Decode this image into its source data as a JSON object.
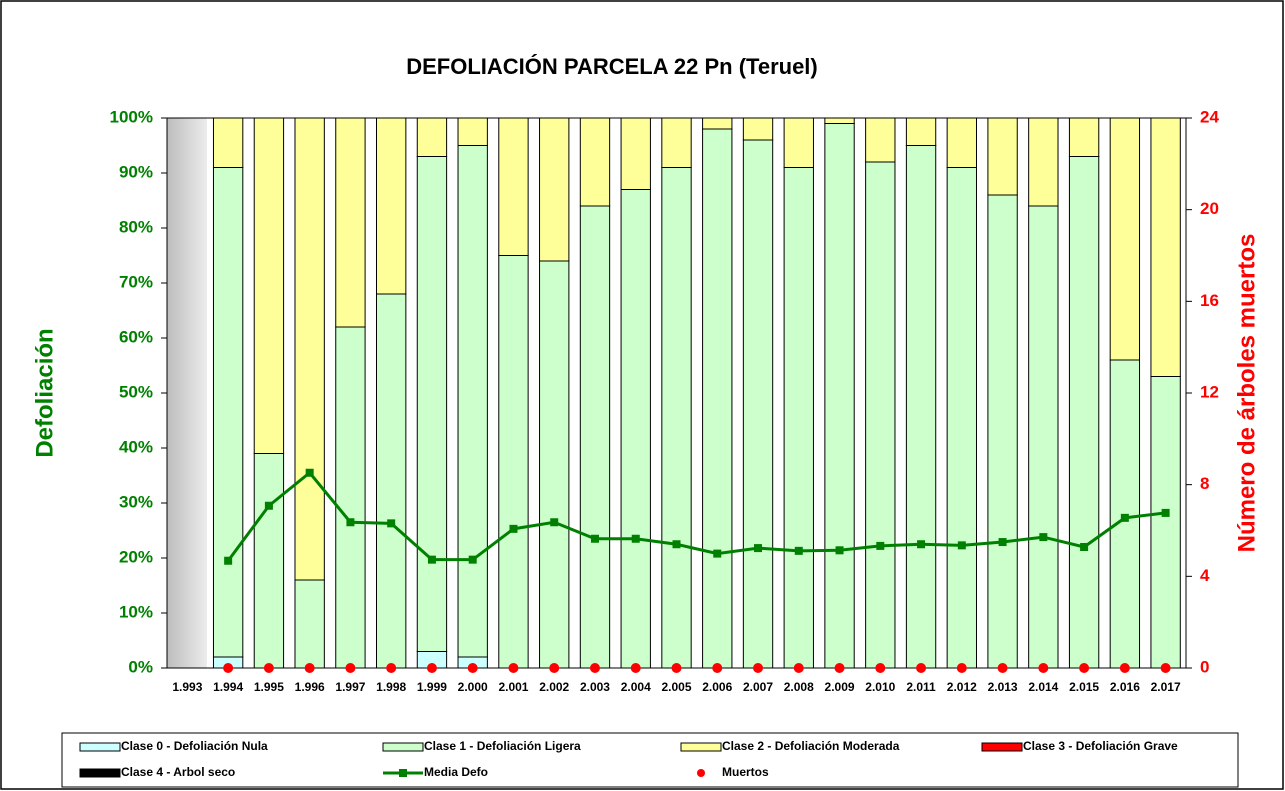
{
  "chart_data": {
    "type": "bar",
    "stacked": true,
    "title": "DEFOLIACIÓN PARCELA 22 Pn (Teruel)",
    "y_label": "Defoliación",
    "y2_label": "Número de árboles muertos",
    "categories": [
      "1.993",
      "1.994",
      "1.995",
      "1.996",
      "1.997",
      "1.998",
      "1.999",
      "2.000",
      "2.001",
      "2.002",
      "2.003",
      "2.004",
      "2.005",
      "2.006",
      "2.007",
      "2.008",
      "2.009",
      "2.010",
      "2.011",
      "2.012",
      "2.013",
      "2.014",
      "2.015",
      "2.016",
      "2.017"
    ],
    "ylim": [
      0,
      100
    ],
    "yticks": [
      {
        "value": 0,
        "label": "0%"
      },
      {
        "value": 10,
        "label": "10%"
      },
      {
        "value": 20,
        "label": "20%"
      },
      {
        "value": 30,
        "label": "30%"
      },
      {
        "value": 40,
        "label": "40%"
      },
      {
        "value": 50,
        "label": "50%"
      },
      {
        "value": 60,
        "label": "60%"
      },
      {
        "value": 70,
        "label": "70%"
      },
      {
        "value": 80,
        "label": "80%"
      },
      {
        "value": 90,
        "label": "90%"
      },
      {
        "value": 100,
        "label": "100%"
      }
    ],
    "y2lim": [
      0,
      24
    ],
    "y2ticks": [
      0,
      4,
      8,
      12,
      16,
      20,
      24
    ],
    "y_color": "#008000",
    "y2_color": "#ff0000",
    "series": [
      {
        "name": "Clase 0 - Defoliación Nula",
        "color": "#ccffff",
        "values": [
          null,
          2,
          0,
          0,
          0,
          0,
          3,
          2,
          0,
          0,
          0,
          0,
          0,
          0,
          0,
          0,
          0,
          0,
          0,
          0,
          0,
          0,
          0,
          0,
          0
        ]
      },
      {
        "name": "Clase 1 - Defoliación Ligera",
        "color": "#ccffcc",
        "values": [
          null,
          89,
          39,
          16,
          62,
          68,
          90,
          93,
          75,
          74,
          84,
          87,
          91,
          98,
          96,
          91,
          99,
          92,
          95,
          91,
          86,
          84,
          93,
          56,
          53
        ]
      },
      {
        "name": "Clase 2 - Defoliación Moderada",
        "color": "#ffff99",
        "values": [
          null,
          9,
          61,
          84,
          38,
          32,
          7,
          5,
          25,
          26,
          16,
          13,
          9,
          2,
          4,
          9,
          1,
          8,
          5,
          9,
          14,
          16,
          7,
          44,
          47
        ]
      },
      {
        "name": "Clase 3 - Defoliación Grave",
        "color": "#ff0000",
        "values": [
          null,
          0,
          0,
          0,
          0,
          0,
          0,
          0,
          0,
          0,
          0,
          0,
          0,
          0,
          0,
          0,
          0,
          0,
          0,
          0,
          0,
          0,
          0,
          0,
          0
        ]
      },
      {
        "name": "Clase 4 - Arbol seco",
        "color": "#000000",
        "values": [
          null,
          0,
          0,
          0,
          0,
          0,
          0,
          0,
          0,
          0,
          0,
          0,
          0,
          0,
          0,
          0,
          0,
          0,
          0,
          0,
          0,
          0,
          0,
          0,
          0
        ]
      },
      {
        "name": "Media Defo",
        "type": "line",
        "color": "#008000",
        "values": [
          null,
          19.5,
          29.5,
          35.5,
          26.5,
          26.3,
          19.7,
          19.7,
          25.3,
          26.5,
          23.5,
          23.5,
          22.5,
          20.8,
          21.8,
          21.3,
          21.4,
          22.2,
          22.5,
          22.3,
          22.9,
          23.8,
          22,
          27.3,
          28.2
        ]
      },
      {
        "name": "Muertos",
        "type": "scatter",
        "axis": "y2",
        "color": "#ff0000",
        "values": [
          null,
          0,
          0,
          0,
          0,
          0,
          0,
          0,
          0,
          0,
          0,
          0,
          0,
          0,
          0,
          0,
          0,
          0,
          0,
          0,
          0,
          0,
          0,
          0,
          0
        ]
      }
    ]
  }
}
